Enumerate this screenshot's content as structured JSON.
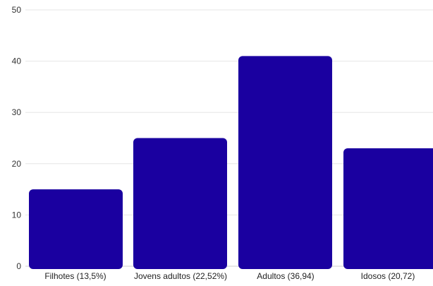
{
  "chart_data": {
    "type": "bar",
    "categories": [
      "Filhotes (13,5%)",
      "Jovens adultos (22,52%)",
      "Adultos (36,94)",
      "Idosos (20,72)"
    ],
    "values": [
      15,
      25,
      41,
      23
    ],
    "ylim": [
      0,
      50
    ],
    "yticks": [
      0,
      10,
      20,
      30,
      40,
      50
    ],
    "grid": true,
    "bar_color": "#1a00a0"
  }
}
